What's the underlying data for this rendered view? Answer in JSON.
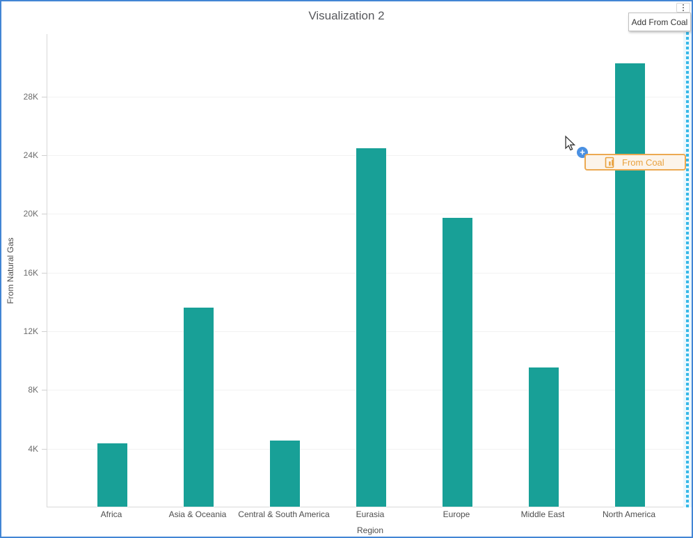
{
  "header": {
    "title": "Visualization 2"
  },
  "menu": {
    "button_icon": "kebab-vertical",
    "items": [
      {
        "label": "Add From Coal"
      }
    ]
  },
  "chart_data": {
    "type": "bar",
    "title": "Visualization 2",
    "categories": [
      "Africa",
      "Asia & Oceania",
      "Central & South America",
      "Eurasia",
      "Europe",
      "Middle East",
      "North America"
    ],
    "values": [
      4300,
      13560,
      4510,
      24450,
      19690,
      9470,
      30230
    ],
    "series_name": "From Natural Gas",
    "xlabel": "Region",
    "ylabel": "From Natural Gas",
    "ylim": [
      0,
      32260
    ],
    "y_ticks": [
      {
        "label": "4K",
        "value": 4000
      },
      {
        "label": "8K",
        "value": 8000
      },
      {
        "label": "12K",
        "value": 12000
      },
      {
        "label": "16K",
        "value": 16000
      },
      {
        "label": "20K",
        "value": 20000
      },
      {
        "label": "24K",
        "value": 24000
      },
      {
        "label": "28K",
        "value": 28000
      }
    ],
    "grid": "horizontal",
    "legend": "none",
    "bar_color": "#18A097"
  },
  "drag": {
    "ghost_label": "From Coal",
    "ghost_icon": "measure-field-icon",
    "badge_icon": "plus-icon",
    "badge_plus": "+",
    "accent_color": "#ECA951",
    "text_color": "#E8A13E"
  },
  "colors": {
    "selection_border": "#4285D4",
    "drop_indicator": "#35B8E8",
    "drop_zone_bg": "#EAF7FD",
    "bar": "#18A097"
  }
}
